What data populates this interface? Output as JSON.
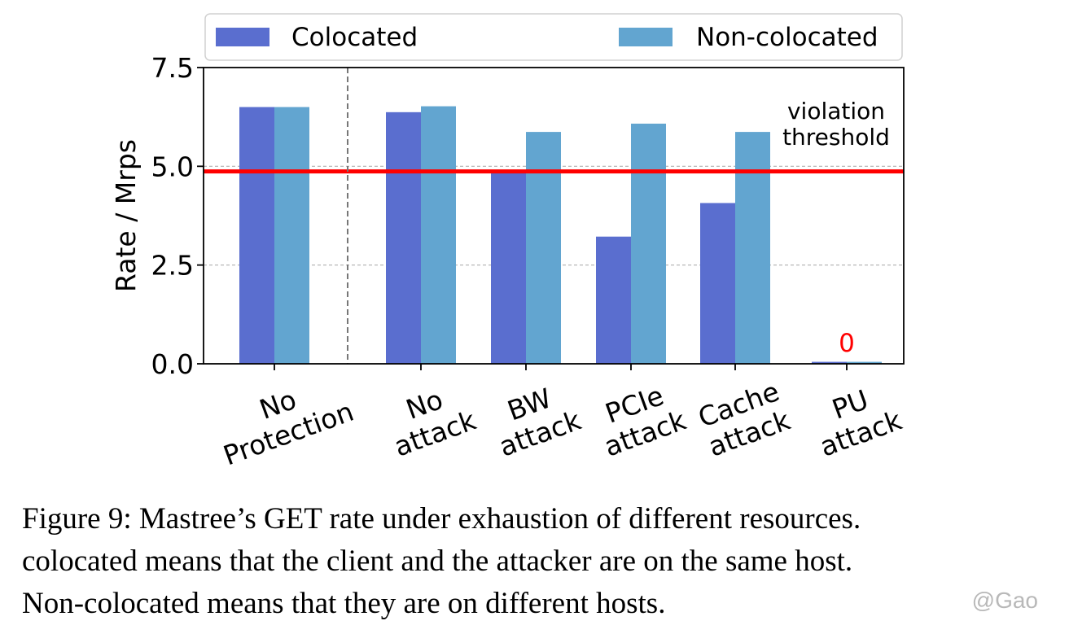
{
  "chart_data": {
    "type": "bar",
    "title": "",
    "xlabel": "",
    "ylabel": "Rate / Mrps",
    "ylim": [
      0,
      7.5
    ],
    "yticks": [
      "0.0",
      "2.5",
      "5.0",
      "7.5"
    ],
    "grid": "horizontal dashed at y ticks",
    "legend_position": "top",
    "categories": [
      [
        "No",
        "Protection"
      ],
      [
        "No",
        "attack"
      ],
      [
        "BW",
        "attack"
      ],
      [
        "PCIe",
        "attack"
      ],
      [
        "Cache",
        "attack"
      ],
      [
        "PU",
        "attack"
      ]
    ],
    "series": [
      {
        "name": "Colocated",
        "color": "#5a6ecf",
        "values": [
          6.5,
          6.37,
          4.85,
          3.22,
          4.07,
          0.05
        ]
      },
      {
        "name": "Non-colocated",
        "color": "#62a5d0",
        "values": [
          6.5,
          6.52,
          5.87,
          6.08,
          5.87,
          0.05
        ]
      }
    ],
    "threshold": {
      "value": 4.87,
      "color": "#ff0000",
      "label": [
        "violation",
        "threshold"
      ]
    },
    "separator_after_category": 0,
    "annotations": [
      {
        "category": 5,
        "text": "0",
        "value": 0.5,
        "color": "#ff0000"
      }
    ]
  },
  "caption": {
    "lines": [
      "Figure 9: Mastree’s GET rate under exhaustion of different resources.",
      "colocated means that the client and the attacker are on the same host.",
      "Non-colocated means that they are on different hosts."
    ]
  },
  "watermark": "@Gao"
}
